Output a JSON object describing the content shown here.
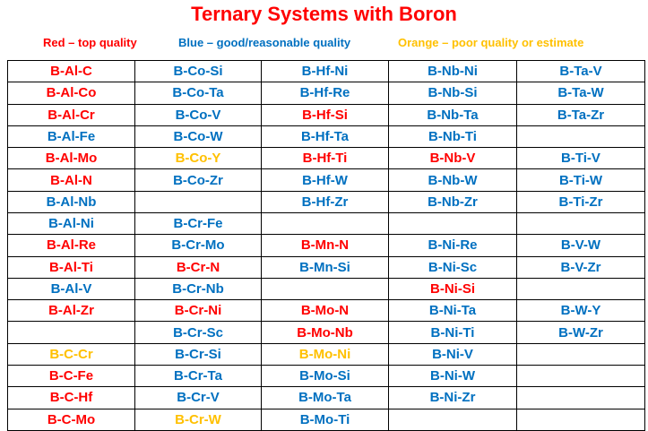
{
  "title": "Ternary Systems with Boron",
  "legend": {
    "red": "Red – top quality",
    "blue": "Blue – good/reasonable quality",
    "orange": "Orange – poor quality or estimate"
  },
  "colors": {
    "red": "#ff0000",
    "blue": "#0070c0",
    "orange": "#ffc000"
  },
  "rows": [
    [
      [
        "B-Al-C",
        "red"
      ],
      [
        "B-Co-Si",
        "blue"
      ],
      [
        "B-Hf-Ni",
        "blue"
      ],
      [
        "B-Nb-Ni",
        "blue"
      ],
      [
        "B-Ta-V",
        "blue"
      ]
    ],
    [
      [
        "B-Al-Co",
        "red"
      ],
      [
        "B-Co-Ta",
        "blue"
      ],
      [
        "B-Hf-Re",
        "blue"
      ],
      [
        "B-Nb-Si",
        "blue"
      ],
      [
        "B-Ta-W",
        "blue"
      ]
    ],
    [
      [
        "B-Al-Cr",
        "red"
      ],
      [
        "B-Co-V",
        "blue"
      ],
      [
        "B-Hf-Si",
        "red"
      ],
      [
        "B-Nb-Ta",
        "blue"
      ],
      [
        "B-Ta-Zr",
        "blue"
      ]
    ],
    [
      [
        "B-Al-Fe",
        "blue"
      ],
      [
        "B-Co-W",
        "blue"
      ],
      [
        "B-Hf-Ta",
        "blue"
      ],
      [
        "B-Nb-Ti",
        "blue"
      ],
      [
        "",
        ""
      ]
    ],
    [
      [
        "B-Al-Mo",
        "red"
      ],
      [
        "B-Co-Y",
        "orange"
      ],
      [
        "B-Hf-Ti",
        "red"
      ],
      [
        "B-Nb-V",
        "red"
      ],
      [
        "B-Ti-V",
        "blue"
      ]
    ],
    [
      [
        "B-Al-N",
        "red"
      ],
      [
        "B-Co-Zr",
        "blue"
      ],
      [
        "B-Hf-W",
        "blue"
      ],
      [
        "B-Nb-W",
        "blue"
      ],
      [
        "B-Ti-W",
        "blue"
      ]
    ],
    [
      [
        "B-Al-Nb",
        "blue"
      ],
      [
        "",
        ""
      ],
      [
        "B-Hf-Zr",
        "blue"
      ],
      [
        "B-Nb-Zr",
        "blue"
      ],
      [
        "B-Ti-Zr",
        "blue"
      ]
    ],
    [
      [
        "B-Al-Ni",
        "blue"
      ],
      [
        "B-Cr-Fe",
        "blue"
      ],
      [
        "",
        ""
      ],
      [
        "",
        ""
      ],
      [
        "",
        ""
      ]
    ],
    [
      [
        "B-Al-Re",
        "red"
      ],
      [
        "B-Cr-Mo",
        "blue"
      ],
      [
        "B-Mn-N",
        "red"
      ],
      [
        "B-Ni-Re",
        "blue"
      ],
      [
        "B-V-W",
        "blue"
      ]
    ],
    [
      [
        "B-Al-Ti",
        "red"
      ],
      [
        "B-Cr-N",
        "red"
      ],
      [
        "B-Mn-Si",
        "blue"
      ],
      [
        "B-Ni-Sc",
        "blue"
      ],
      [
        "B-V-Zr",
        "blue"
      ]
    ],
    [
      [
        "B-Al-V",
        "blue"
      ],
      [
        "B-Cr-Nb",
        "blue"
      ],
      [
        "",
        ""
      ],
      [
        "B-Ni-Si",
        "red"
      ],
      [
        "",
        ""
      ]
    ],
    [
      [
        "B-Al-Zr",
        "red"
      ],
      [
        "B-Cr-Ni",
        "red"
      ],
      [
        "B-Mo-N",
        "red"
      ],
      [
        "B-Ni-Ta",
        "blue"
      ],
      [
        "B-W-Y",
        "blue"
      ]
    ],
    [
      [
        "",
        ""
      ],
      [
        "B-Cr-Sc",
        "blue"
      ],
      [
        "B-Mo-Nb",
        "red"
      ],
      [
        "B-Ni-Ti",
        "blue"
      ],
      [
        "B-W-Zr",
        "blue"
      ]
    ],
    [
      [
        "B-C-Cr",
        "orange"
      ],
      [
        "B-Cr-Si",
        "blue"
      ],
      [
        "B-Mo-Ni",
        "orange"
      ],
      [
        "B-Ni-V",
        "blue"
      ],
      [
        "",
        ""
      ]
    ],
    [
      [
        "B-C-Fe",
        "red"
      ],
      [
        "B-Cr-Ta",
        "blue"
      ],
      [
        "B-Mo-Si",
        "blue"
      ],
      [
        "B-Ni-W",
        "blue"
      ],
      [
        "",
        ""
      ]
    ],
    [
      [
        "B-C-Hf",
        "red"
      ],
      [
        "B-Cr-V",
        "blue"
      ],
      [
        "B-Mo-Ta",
        "blue"
      ],
      [
        "B-Ni-Zr",
        "blue"
      ],
      [
        "",
        ""
      ]
    ],
    [
      [
        "B-C-Mo",
        "red"
      ],
      [
        "B-Cr-W",
        "orange"
      ],
      [
        "B-Mo-Ti",
        "blue"
      ],
      [
        "",
        ""
      ],
      [
        "",
        ""
      ]
    ]
  ]
}
